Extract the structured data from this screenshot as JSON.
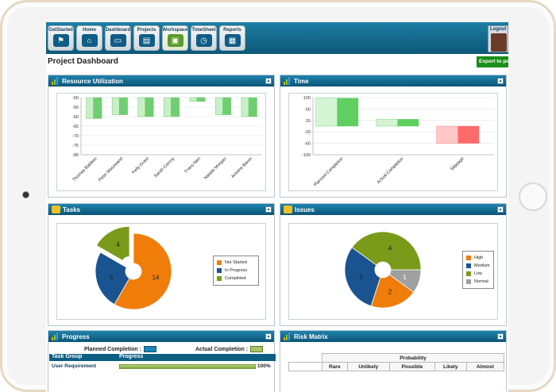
{
  "nav": {
    "items": [
      {
        "label": "GetStarted",
        "icon": "signpost-icon"
      },
      {
        "label": "Home",
        "icon": "home-icon"
      },
      {
        "label": "Dashboard",
        "icon": "dashboard-icon"
      },
      {
        "label": "Projects",
        "icon": "projects-icon"
      },
      {
        "label": "Workspace",
        "icon": "briefcase-icon"
      },
      {
        "label": "TimeSheet",
        "icon": "clock-icon"
      },
      {
        "label": "Reports",
        "icon": "document-icon"
      }
    ],
    "active": "Workspace",
    "logout_label": "Logout"
  },
  "page": {
    "title": "Project Dashboard",
    "export_label": "Export to pdf"
  },
  "panels": {
    "resource": {
      "title": "Resource Utilization"
    },
    "time": {
      "title": "Time"
    },
    "tasks": {
      "title": "Tasks"
    },
    "issues": {
      "title": "Issues"
    },
    "progress": {
      "title": "Progress"
    },
    "risk": {
      "title": "Risk Matrix"
    }
  },
  "chart_data": [
    {
      "type": "bar",
      "name": "Resource Utilization",
      "categories": [
        "Thomas Baldwin",
        "Peter Moszwarel",
        "Kelly Grant",
        "Sarah Conroy",
        "Frans Neri",
        "Natalie Morgan",
        "Antoine Baron"
      ],
      "values": [
        -61,
        -59,
        -60,
        -60,
        -52,
        -59,
        -60
      ],
      "bar_top": -50,
      "yticks": [
        -50,
        -55,
        -60,
        -65,
        -70,
        -75,
        -80
      ],
      "ylim": [
        -80,
        -50
      ],
      "grid": true,
      "color": "#6fce6f"
    },
    {
      "type": "bar",
      "name": "Time",
      "categories": [
        "Planned Completion",
        "Actual Completion",
        "Slippage"
      ],
      "values": [
        98,
        24,
        -60
      ],
      "colors": [
        "#5fcf5f",
        "#5fcf5f",
        "#ff6a6a"
      ],
      "yticks": [
        100,
        60,
        20,
        -20,
        -60,
        -100
      ],
      "ylim": [
        -100,
        100
      ],
      "grid": true
    },
    {
      "type": "pie",
      "name": "Tasks",
      "legend": [
        "Not Started",
        "In Progress",
        "Completed"
      ],
      "values": [
        14,
        6,
        4
      ],
      "colors": [
        "#f07d0a",
        "#1a5490",
        "#7a9a1a"
      ],
      "legend_position": "right"
    },
    {
      "type": "pie",
      "name": "Issues",
      "legend": [
        "High",
        "Medium",
        "Low",
        "Normal"
      ],
      "values": [
        2,
        3,
        4,
        1
      ],
      "colors": [
        "#f07d0a",
        "#1a5490",
        "#7a9a1a",
        "#a0a0a0"
      ],
      "legend_position": "right"
    }
  ],
  "progress": {
    "planned_label": "Planned Completion :",
    "actual_label": "Actual Completion :",
    "col_task": "Task Group",
    "col_progress": "Progress",
    "rows": [
      {
        "name": "User Requirement",
        "value": 100,
        "label": "100%"
      }
    ]
  },
  "risk": {
    "probability_label": "Probability",
    "columns": [
      "Rare",
      "Unlikely",
      "Possible",
      "Likely",
      "Almost"
    ]
  }
}
